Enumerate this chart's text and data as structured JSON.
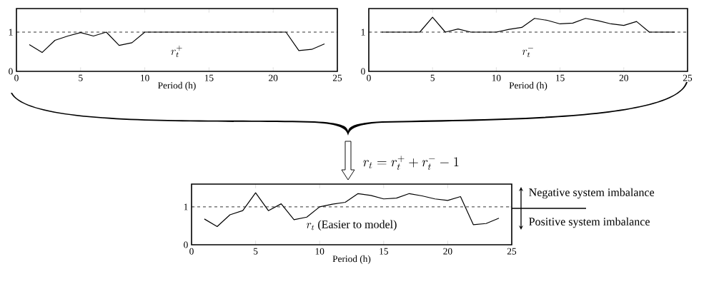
{
  "chart_data": [
    {
      "type": "line",
      "xlabel": "Period (h)",
      "x": [
        1,
        2,
        3,
        4,
        5,
        6,
        7,
        8,
        9,
        10,
        11,
        12,
        13,
        14,
        15,
        16,
        17,
        18,
        19,
        20,
        21,
        22,
        23,
        24
      ],
      "series": [
        {
          "name": "r_t^+",
          "color": "#000000",
          "values": [
            0.68,
            0.48,
            0.79,
            0.9,
            0.99,
            0.9,
            1.0,
            0.66,
            0.73,
            1.0,
            1.0,
            1.0,
            1.0,
            1.0,
            1.0,
            1.0,
            1.0,
            1.0,
            1.0,
            1.0,
            1.0,
            0.53,
            0.56,
            0.7
          ]
        }
      ],
      "xlim": [
        0,
        25
      ],
      "ylim": [
        0,
        1.6
      ],
      "xticks": [
        0,
        5,
        10,
        15,
        20,
        25
      ],
      "yticks": [
        0,
        1
      ],
      "ref_lines": [
        {
          "axis": "y",
          "value": 1,
          "line_style": "dashed"
        }
      ],
      "line_style": "solid"
    },
    {
      "type": "line",
      "xlabel": "Period (h)",
      "x": [
        1,
        2,
        3,
        4,
        5,
        6,
        7,
        8,
        9,
        10,
        11,
        12,
        13,
        14,
        15,
        16,
        17,
        18,
        19,
        20,
        21,
        22,
        23,
        24
      ],
      "series": [
        {
          "name": "r_t^-",
          "color": "#000000",
          "values": [
            1.0,
            1.0,
            1.0,
            1.0,
            1.38,
            1.0,
            1.08,
            1.0,
            1.0,
            1.0,
            1.07,
            1.12,
            1.35,
            1.3,
            1.21,
            1.23,
            1.35,
            1.29,
            1.21,
            1.17,
            1.27,
            1.0,
            1.0,
            1.0
          ]
        }
      ],
      "xlim": [
        0,
        25
      ],
      "ylim": [
        0,
        1.6
      ],
      "xticks": [
        0,
        5,
        10,
        15,
        20,
        25
      ],
      "yticks": [
        0,
        1
      ],
      "ref_lines": [
        {
          "axis": "y",
          "value": 1,
          "line_style": "dashed"
        }
      ],
      "line_style": "solid"
    },
    {
      "type": "line",
      "xlabel": "Period (h)",
      "x": [
        1,
        2,
        3,
        4,
        5,
        6,
        7,
        8,
        9,
        10,
        11,
        12,
        13,
        14,
        15,
        16,
        17,
        18,
        19,
        20,
        21,
        22,
        23,
        24
      ],
      "series": [
        {
          "name": "r_t",
          "color": "#000000",
          "values": [
            0.68,
            0.48,
            0.79,
            0.9,
            1.37,
            0.9,
            1.08,
            0.66,
            0.73,
            1.0,
            1.07,
            1.12,
            1.35,
            1.3,
            1.21,
            1.23,
            1.35,
            1.29,
            1.21,
            1.17,
            1.27,
            0.53,
            0.56,
            0.7
          ]
        }
      ],
      "xlim": [
        0,
        25
      ],
      "ylim": [
        0,
        1.6
      ],
      "xticks": [
        0,
        5,
        10,
        15,
        20,
        25
      ],
      "yticks": [
        0,
        1
      ],
      "ref_lines": [
        {
          "axis": "y",
          "value": 1,
          "line_style": "dashed"
        }
      ],
      "line_style": "solid",
      "annotations": [
        "r_t = r_t^+ + r_t^- - 1",
        "(Easier to model)",
        "Negative system imbalance",
        "Positive system imbalance"
      ]
    }
  ]
}
